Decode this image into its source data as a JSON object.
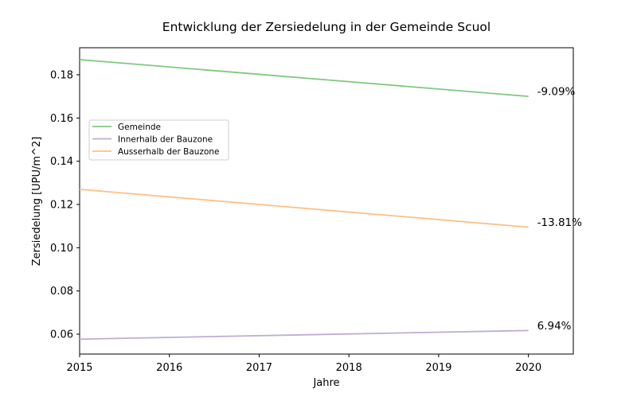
{
  "chart_data": {
    "type": "line",
    "title": "Entwicklung der Zersiedelung in der Gemeinde Scuol",
    "xlabel": "Jahre",
    "ylabel": "Zersiedelung [UPU/m^2]",
    "xlim": [
      2015,
      2020.5
    ],
    "ylim": [
      0.0508,
      0.1925
    ],
    "xticks": [
      2015,
      2016,
      2017,
      2018,
      2019,
      2020
    ],
    "yticks": [
      0.06,
      0.08,
      0.1,
      0.12,
      0.14,
      0.16,
      0.18
    ],
    "ytick_labels": [
      "0.06",
      "0.08",
      "0.10",
      "0.12",
      "0.14",
      "0.16",
      "0.18"
    ],
    "grid": false,
    "legend_position": "center-left",
    "series": [
      {
        "name": "Gemeinde",
        "color": "#7fc97f",
        "x": [
          2015,
          2020
        ],
        "values": [
          0.187,
          0.17
        ],
        "end_label": "-9.09%"
      },
      {
        "name": "Innerhalb der Bauzone",
        "color": "#beaed4",
        "x": [
          2015,
          2020
        ],
        "values": [
          0.0577,
          0.0617
        ],
        "end_label": "6.94%"
      },
      {
        "name": "Ausserhalb der Bauzone",
        "color": "#fdc086",
        "x": [
          2015,
          2020
        ],
        "values": [
          0.127,
          0.1095
        ],
        "end_label": "-13.81%"
      }
    ]
  }
}
